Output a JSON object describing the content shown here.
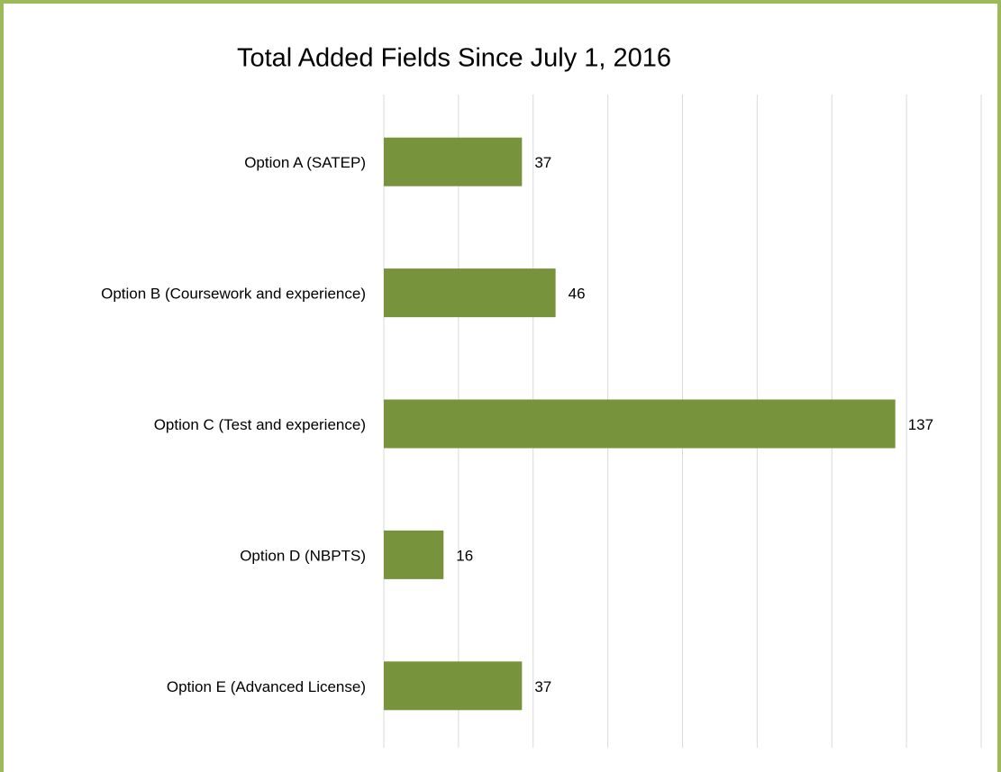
{
  "chart_data": {
    "type": "bar",
    "orientation": "horizontal",
    "title": "Total Added Fields Since July 1, 2016",
    "categories": [
      "Option A (SATEP)",
      "Option B (Coursework and experience)",
      "Option C (Test and experience)",
      "Option D (NBPTS)",
      "Option E (Advanced License)"
    ],
    "values": [
      37,
      46,
      137,
      16,
      37
    ],
    "color": "#77933c",
    "xlim": [
      0,
      160
    ],
    "xticks": [
      0,
      20,
      40,
      60,
      80,
      100,
      120,
      140,
      160
    ],
    "grid": true
  }
}
